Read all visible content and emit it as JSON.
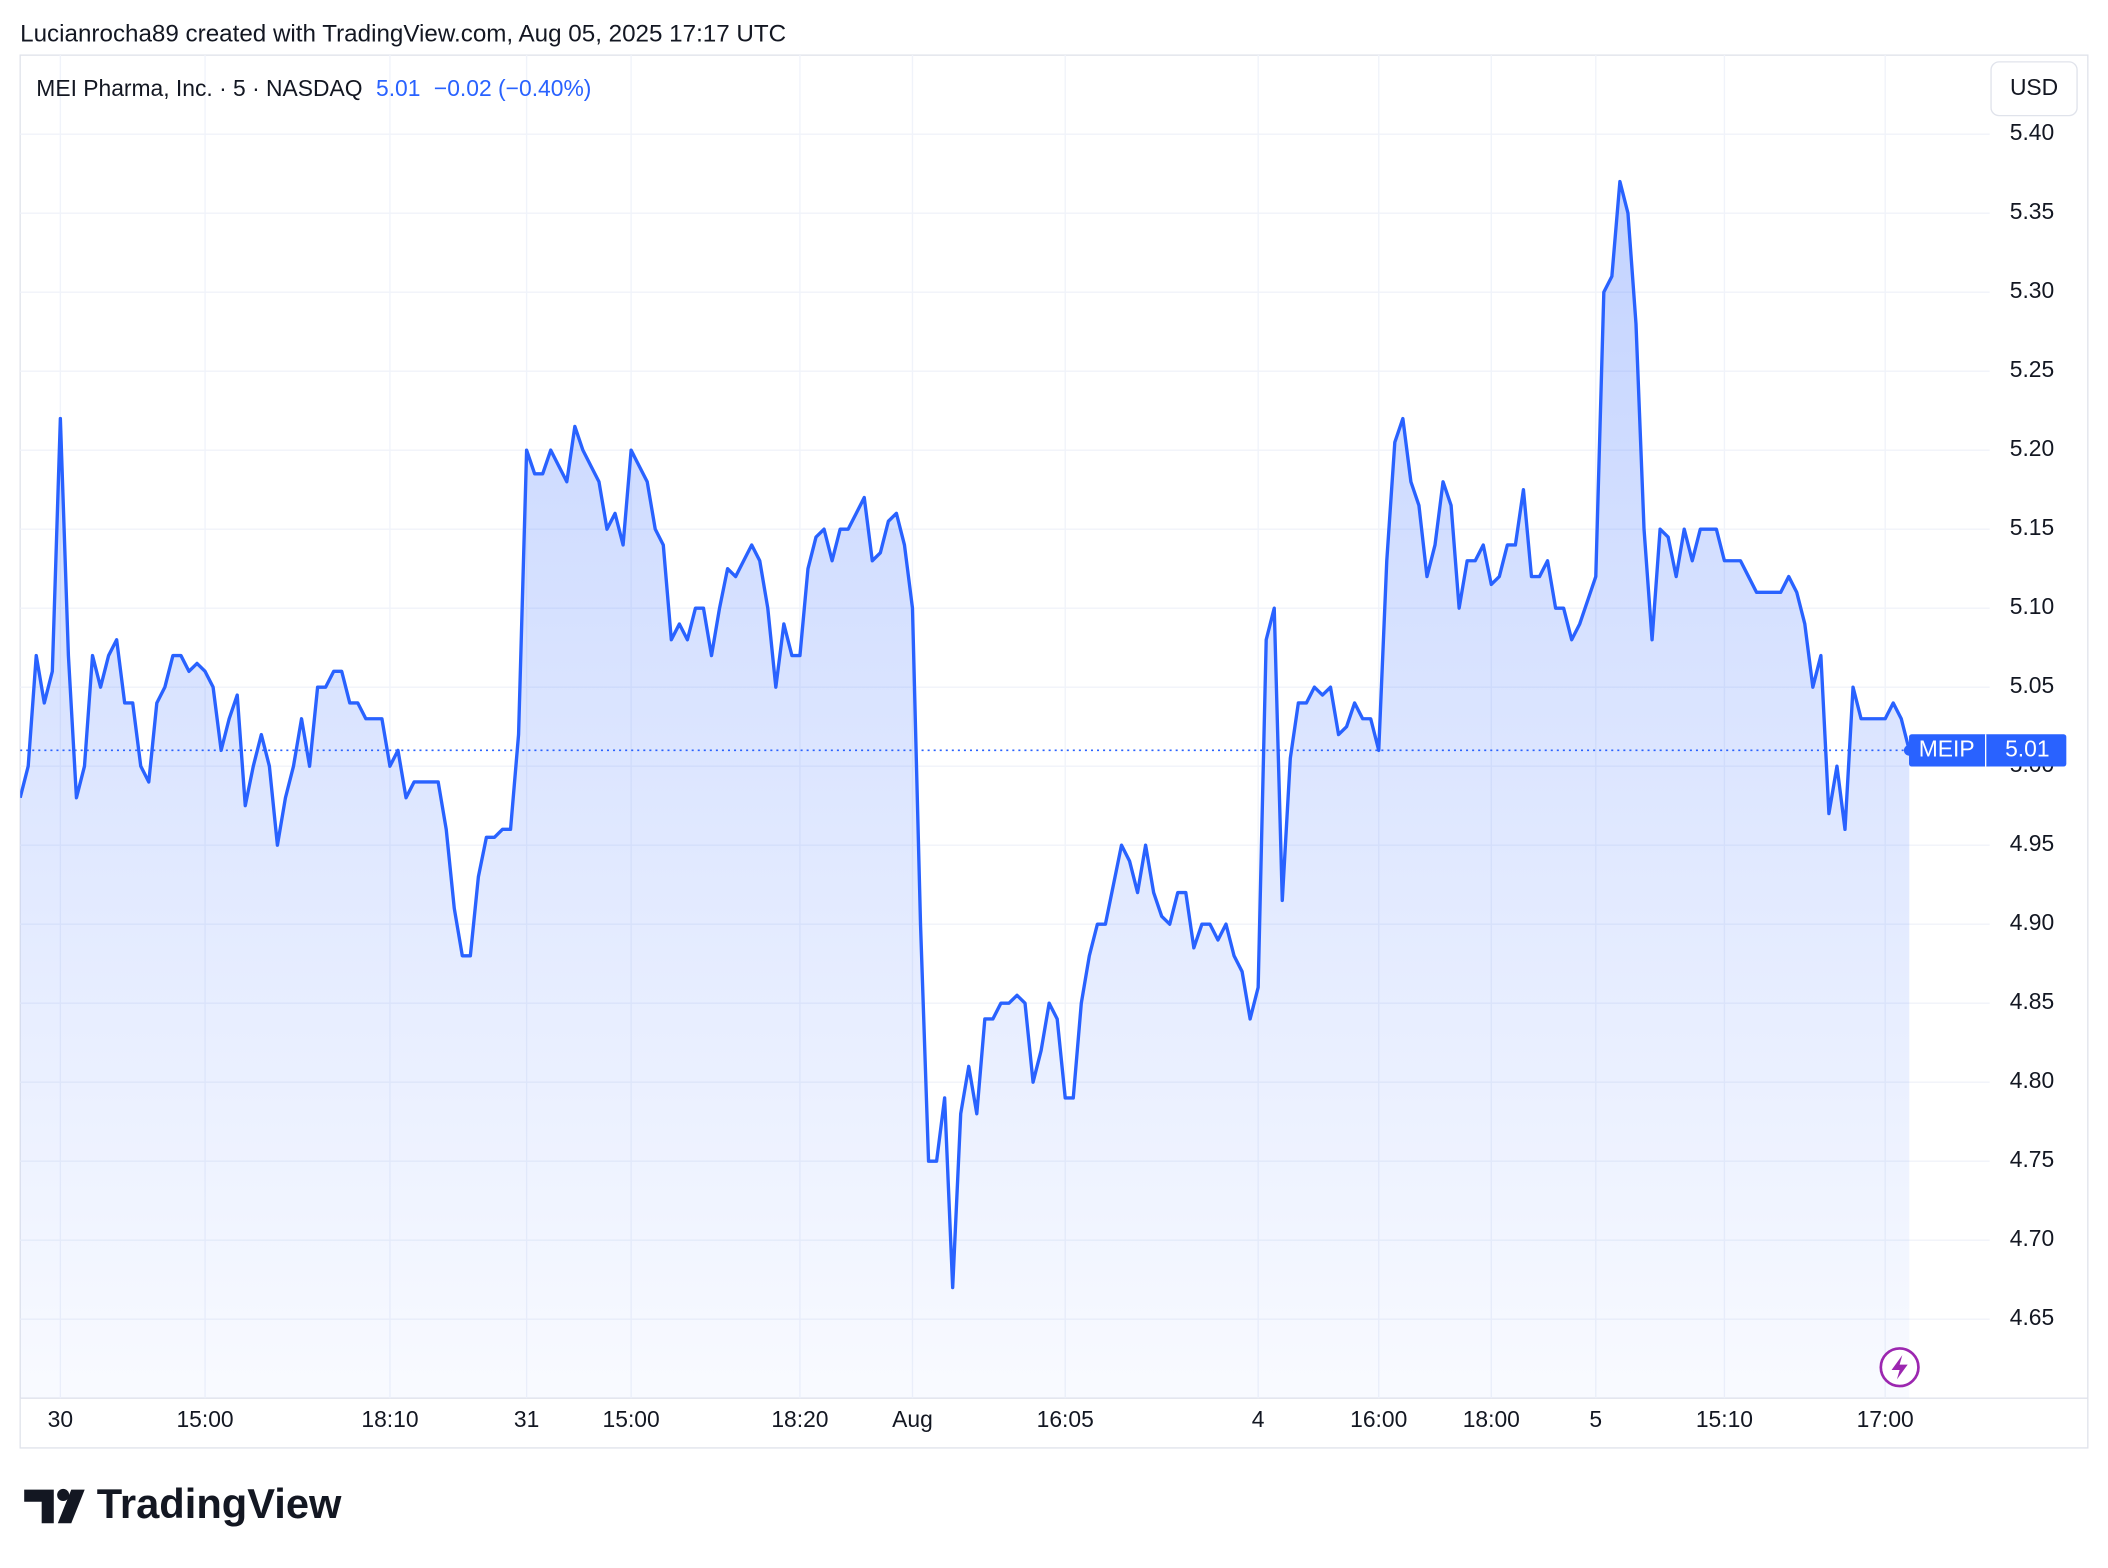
{
  "header": {
    "credit": "Lucianrocha89 created with TradingView.com, Aug 05, 2025 17:17 UTC",
    "symbol_info": "MEI Pharma, Inc. · 5 · NASDAQ",
    "price": "5.01",
    "change": "−0.02 (−0.40%)",
    "currency": "USD",
    "logo": "TradingView"
  },
  "chart_data": {
    "type": "line",
    "color": "#2962ff",
    "grid": true,
    "price_label": {
      "symbol": "MEIP",
      "price": "5.01"
    },
    "values": [
      4.98,
      5.0,
      5.07,
      5.04,
      5.06,
      5.22,
      5.07,
      4.98,
      5.0,
      5.07,
      5.05,
      5.07,
      5.08,
      5.04,
      5.04,
      5.0,
      4.99,
      5.04,
      5.05,
      5.07,
      5.07,
      5.06,
      5.065,
      5.06,
      5.05,
      5.01,
      5.03,
      5.045,
      4.975,
      5.0,
      5.02,
      5.0,
      4.95,
      4.98,
      5.0,
      5.03,
      5.0,
      5.05,
      5.05,
      5.06,
      5.06,
      5.04,
      5.04,
      5.03,
      5.03,
      5.03,
      5.0,
      5.01,
      4.98,
      4.99,
      4.99,
      4.99,
      4.99,
      4.96,
      4.91,
      4.88,
      4.88,
      4.93,
      4.955,
      4.955,
      4.96,
      4.96,
      5.02,
      5.2,
      5.185,
      5.185,
      5.2,
      5.19,
      5.18,
      5.215,
      5.2,
      5.19,
      5.18,
      5.15,
      5.16,
      5.14,
      5.2,
      5.19,
      5.18,
      5.15,
      5.14,
      5.08,
      5.09,
      5.08,
      5.1,
      5.1,
      5.07,
      5.1,
      5.125,
      5.12,
      5.13,
      5.14,
      5.13,
      5.1,
      5.05,
      5.09,
      5.07,
      5.07,
      5.125,
      5.145,
      5.15,
      5.13,
      5.15,
      5.15,
      5.16,
      5.17,
      5.13,
      5.135,
      5.155,
      5.16,
      5.14,
      5.1,
      4.9,
      4.75,
      4.75,
      4.79,
      4.67,
      4.78,
      4.81,
      4.78,
      4.84,
      4.84,
      4.85,
      4.85,
      4.855,
      4.85,
      4.8,
      4.82,
      4.85,
      4.84,
      4.79,
      4.79,
      4.85,
      4.88,
      4.9,
      4.9,
      4.925,
      4.95,
      4.94,
      4.92,
      4.95,
      4.92,
      4.905,
      4.9,
      4.92,
      4.92,
      4.885,
      4.9,
      4.9,
      4.89,
      4.9,
      4.88,
      4.87,
      4.84,
      4.86,
      5.08,
      5.1,
      4.915,
      5.005,
      5.04,
      5.04,
      5.05,
      5.045,
      5.05,
      5.02,
      5.025,
      5.04,
      5.03,
      5.03,
      5.01,
      5.13,
      5.205,
      5.22,
      5.18,
      5.165,
      5.12,
      5.14,
      5.18,
      5.165,
      5.1,
      5.13,
      5.13,
      5.14,
      5.115,
      5.12,
      5.14,
      5.14,
      5.175,
      5.12,
      5.12,
      5.13,
      5.1,
      5.1,
      5.08,
      5.09,
      5.105,
      5.12,
      5.3,
      5.31,
      5.37,
      5.35,
      5.28,
      5.15,
      5.08,
      5.15,
      5.145,
      5.12,
      5.15,
      5.13,
      5.15,
      5.15,
      5.15,
      5.13,
      5.13,
      5.13,
      5.12,
      5.11,
      5.11,
      5.11,
      5.11,
      5.12,
      5.11,
      5.09,
      5.05,
      5.07,
      4.97,
      5.0,
      4.96,
      5.05,
      5.03,
      5.03,
      5.03,
      5.03,
      5.04,
      5.03,
      5.01
    ],
    "xlim": [
      0,
      245
    ],
    "xticks": [
      {
        "value": 5,
        "label": "30"
      },
      {
        "value": 23,
        "label": "15:00"
      },
      {
        "value": 46,
        "label": "18:10"
      },
      {
        "value": 63,
        "label": "31"
      },
      {
        "value": 76,
        "label": "15:00"
      },
      {
        "value": 97,
        "label": "18:20"
      },
      {
        "value": 111,
        "label": "Aug"
      },
      {
        "value": 130,
        "label": "16:05"
      },
      {
        "value": 154,
        "label": "4"
      },
      {
        "value": 169,
        "label": "16:00"
      },
      {
        "value": 183,
        "label": "18:00"
      },
      {
        "value": 196,
        "label": "5"
      },
      {
        "value": 212,
        "label": "15:10"
      },
      {
        "value": 232,
        "label": "17:00"
      }
    ],
    "ylim": [
      4.6,
      5.45
    ],
    "yticks": [
      4.65,
      {
        "value": 4.7,
        "label": "4.70"
      },
      4.75,
      {
        "value": 4.8,
        "label": "4.80"
      },
      4.85,
      {
        "value": 4.9,
        "label": "4.90"
      },
      4.95,
      {
        "value": 5,
        "label": "5.00"
      },
      5.05,
      {
        "value": 5.1,
        "label": "5.10"
      },
      5.15,
      {
        "value": 5.2,
        "label": "5.20"
      },
      5.25,
      {
        "value": 5.3,
        "label": "5.30"
      },
      5.35,
      {
        "value": 5.4,
        "label": "5.40"
      }
    ]
  }
}
